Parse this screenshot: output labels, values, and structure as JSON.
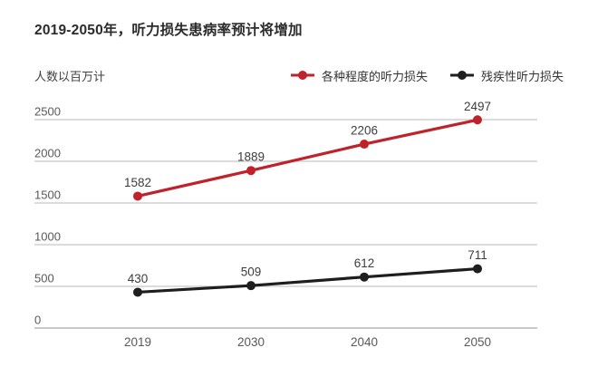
{
  "title": "2019-2050年，听力损失患病率预计将增加",
  "chart_data": {
    "type": "line",
    "title": "2019-2050年，听力损失患病率预计将增加",
    "unit_label": "人数以百万计",
    "categories": [
      "2019",
      "2030",
      "2040",
      "2050"
    ],
    "series": [
      {
        "name": "各种程度的听力损失",
        "color": "#c0222a",
        "values": [
          1582,
          1889,
          2206,
          2497
        ]
      },
      {
        "name": "残疾性听力损失",
        "color": "#1e1e1e",
        "values": [
          430,
          509,
          612,
          711
        ]
      }
    ],
    "yticks": [
      0,
      500,
      1000,
      1500,
      2000,
      2500
    ],
    "ylim": [
      0,
      2500
    ],
    "grid": true,
    "legend_position": "top-right",
    "colors": {
      "gridline": "#c6c6c6",
      "zero_line": "#a8a8a8",
      "tick_label": "#595959",
      "data_label": "#3d3d3d"
    }
  }
}
